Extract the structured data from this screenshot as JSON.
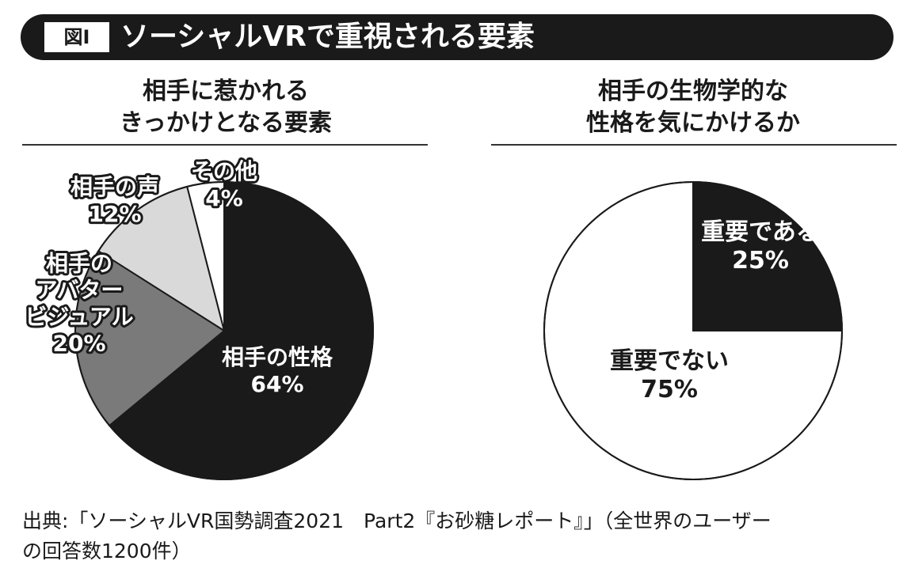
{
  "header": {
    "figure_label": "図I",
    "title": "ソーシャルVRで重視される要素"
  },
  "chart_data": [
    {
      "type": "pie",
      "title": [
        "相手に惹かれる",
        "きっかけとなる要素"
      ],
      "slices": [
        {
          "label": [
            "相手の性格"
          ],
          "value": 64,
          "value_label": "64%",
          "color": "#1a1a1a"
        },
        {
          "label": [
            "相手の",
            "アバター",
            "ビジュアル"
          ],
          "value": 20,
          "value_label": "20%",
          "color": "#7a7a7a"
        },
        {
          "label": [
            "相手の声"
          ],
          "value": 12,
          "value_label": "12%",
          "color": "#d9d9d9"
        },
        {
          "label": [
            "その他"
          ],
          "value": 4,
          "value_label": "4%",
          "color": "#ffffff"
        }
      ]
    },
    {
      "type": "pie",
      "title": [
        "相手の生物学的な",
        "性格を気にかけるか"
      ],
      "slices": [
        {
          "label": [
            "重要である"
          ],
          "value": 25,
          "value_label": "25%",
          "color": "#1a1a1a"
        },
        {
          "label": [
            "重要でない"
          ],
          "value": 75,
          "value_label": "75%",
          "color": "#ffffff"
        }
      ]
    }
  ],
  "source": {
    "lines": [
      "出典:「ソーシャルVR国勢調査2021　Part2『お砂糖レポート』」（全世界のユーザー",
      "の回答数1200件）"
    ]
  }
}
